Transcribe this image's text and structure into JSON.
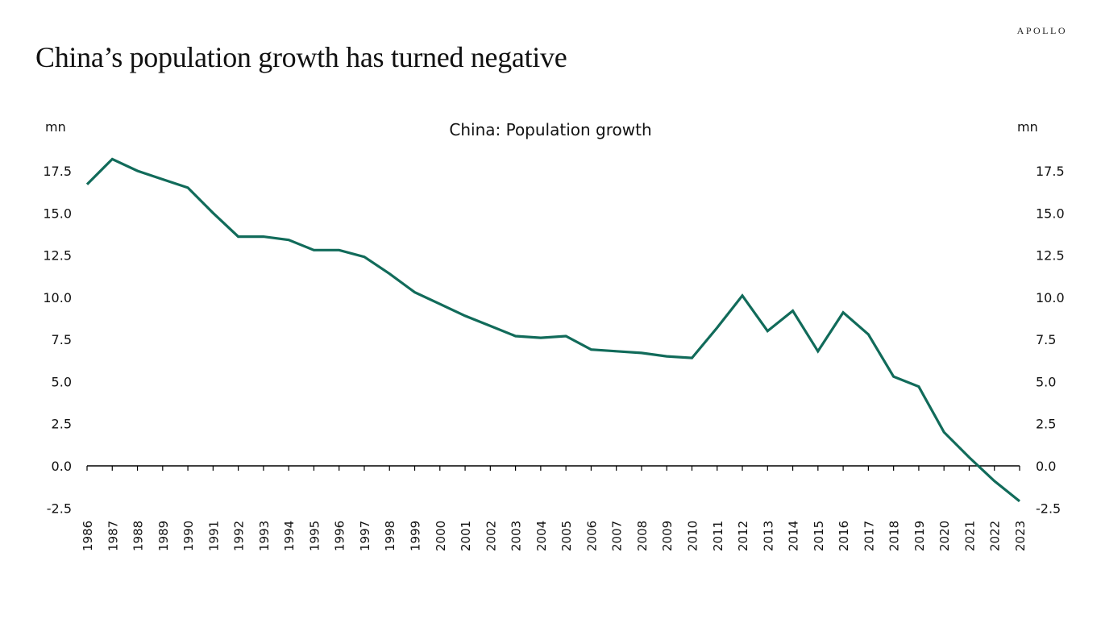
{
  "header": {
    "title": "China’s population growth has turned negative",
    "brand": "APOLLO"
  },
  "colors": {
    "line": "#116b5a",
    "axis": "#000000"
  },
  "chart_data": {
    "type": "line",
    "title": "China: Population growth",
    "xlabel": "",
    "ylabel_left": "mn",
    "ylabel_right": "mn",
    "ylim": [
      -2.5,
      17.5
    ],
    "yticks": [
      -2.5,
      0.0,
      2.5,
      5.0,
      7.5,
      10.0,
      12.5,
      15.0,
      17.5
    ],
    "ytick_labels": [
      "-2.5",
      "0.0",
      "2.5",
      "5.0",
      "7.5",
      "10.0",
      "12.5",
      "15.0",
      "17.5"
    ],
    "grid": false,
    "legend": "none",
    "x": [
      "1986",
      "1987",
      "1988",
      "1989",
      "1990",
      "1991",
      "1992",
      "1993",
      "1994",
      "1995",
      "1996",
      "1997",
      "1998",
      "1999",
      "2000",
      "2001",
      "2002",
      "2003",
      "2004",
      "2005",
      "2006",
      "2007",
      "2008",
      "2009",
      "2010",
      "2011",
      "2012",
      "2013",
      "2014",
      "2015",
      "2016",
      "2017",
      "2018",
      "2019",
      "2020",
      "2021",
      "2022",
      "2023"
    ],
    "series": [
      {
        "name": "China population growth (mn)",
        "values": [
          16.7,
          18.2,
          17.5,
          17.0,
          16.5,
          15.0,
          13.6,
          13.6,
          13.4,
          12.8,
          12.8,
          12.4,
          11.4,
          10.3,
          9.6,
          8.9,
          8.3,
          7.7,
          7.6,
          7.7,
          6.9,
          6.8,
          6.7,
          6.5,
          6.4,
          8.2,
          10.1,
          8.0,
          9.2,
          6.8,
          9.1,
          7.8,
          5.3,
          4.7,
          2.0,
          0.5,
          -0.9,
          -2.1
        ]
      }
    ]
  }
}
